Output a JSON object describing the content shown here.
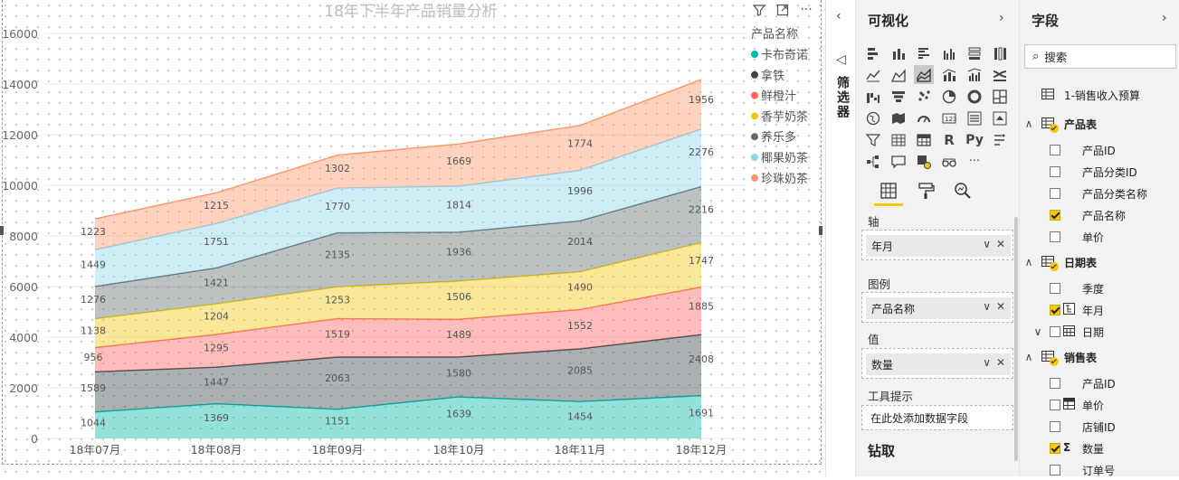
{
  "chart_data": {
    "type": "area",
    "stacked": true,
    "title": "18年下半年产品销量分析",
    "categories": [
      "18年07月",
      "18年08月",
      "18年09月",
      "18年10月",
      "18年11月",
      "18年12月"
    ],
    "ylim": [
      0,
      16000
    ],
    "yticks": [
      0,
      2000,
      4000,
      6000,
      8000,
      10000,
      12000,
      14000,
      16000
    ],
    "grid": true,
    "legend": {
      "title": "产品名称",
      "position": "right"
    },
    "series": [
      {
        "name": "卡布奇诺",
        "color": "#01b8aa",
        "values": [
          1044,
          1369,
          1151,
          1639,
          1454,
          1691
        ]
      },
      {
        "name": "拿铁",
        "color": "#374649",
        "values": [
          1589,
          1447,
          2063,
          1580,
          2085,
          2408
        ]
      },
      {
        "name": "鲜橙汁",
        "color": "#fd625e",
        "values": [
          956,
          1295,
          1519,
          1489,
          1552,
          1885
        ]
      },
      {
        "name": "香芋奶茶",
        "color": "#f2c80f",
        "values": [
          1138,
          1204,
          1253,
          1506,
          1490,
          1747
        ]
      },
      {
        "name": "养乐多",
        "color": "#5f6b6d",
        "values": [
          1276,
          1421,
          2135,
          1936,
          2014,
          2216
        ]
      },
      {
        "name": "椰果奶茶",
        "color": "#8ad4eb",
        "values": [
          1449,
          1751,
          1770,
          1814,
          1996,
          2276
        ]
      },
      {
        "name": "珍珠奶茶",
        "color": "#fe9666",
        "values": [
          1223,
          1215,
          1302,
          1669,
          1774,
          1956
        ]
      }
    ]
  },
  "visual_header": {
    "filter_icon": "filter-icon",
    "focus_icon": "focus-mode-icon",
    "more_icon": "more-options-icon",
    "more_text": "···"
  },
  "filter_pane": {
    "label": "筛选器",
    "collapse_glyph": "‹",
    "icon_glyph": "◁"
  },
  "viz_pane": {
    "title": "可视化",
    "expand_glyph": "›",
    "more_glyph": "···",
    "r_glyph": "R",
    "py_glyph": "Py",
    "wells": {
      "axis_label": "轴",
      "axis_value": "年月",
      "legend_label": "图例",
      "legend_value": "产品名称",
      "values_label": "值",
      "values_value": "数量",
      "tooltip_label": "工具提示",
      "tooltip_placeholder": "在此处添加数据字段"
    },
    "pill_dropdown_glyph": "∨",
    "pill_remove_glyph": "✕",
    "drill_title": "钻取"
  },
  "fields_pane": {
    "title": "字段",
    "expand_glyph": "›",
    "search_glyph": "⌕",
    "search_placeholder": "搜索",
    "expanded_glyph": "∧",
    "collapsed_glyph": "∨",
    "tables": [
      {
        "name": "1-销售收入预算",
        "expanded": false,
        "checked": false,
        "fields": []
      },
      {
        "name": "产品表",
        "expanded": true,
        "checked": true,
        "fields": [
          {
            "name": "产品ID",
            "checked": false,
            "icon": ""
          },
          {
            "name": "产品分类ID",
            "checked": false,
            "icon": ""
          },
          {
            "name": "产品分类名称",
            "checked": false,
            "icon": ""
          },
          {
            "name": "产品名称",
            "checked": true,
            "icon": ""
          },
          {
            "name": "单价",
            "checked": false,
            "icon": ""
          }
        ]
      },
      {
        "name": "日期表",
        "expanded": true,
        "checked": true,
        "fields": [
          {
            "name": "季度",
            "checked": false,
            "icon": ""
          },
          {
            "name": "年月",
            "checked": true,
            "icon": "hierarchy"
          },
          {
            "name": "日期",
            "checked": false,
            "icon": "calendar",
            "expandable": true
          }
        ]
      },
      {
        "name": "销售表",
        "expanded": true,
        "checked": true,
        "fields": [
          {
            "name": "产品ID",
            "checked": false,
            "icon": ""
          },
          {
            "name": "单价",
            "checked": false,
            "icon": "table"
          },
          {
            "name": "店铺ID",
            "checked": false,
            "icon": ""
          },
          {
            "name": "数量",
            "checked": true,
            "icon": "sigma",
            "icon_glyph": "Σ"
          },
          {
            "name": "订单号",
            "checked": false,
            "icon": ""
          }
        ]
      }
    ]
  }
}
